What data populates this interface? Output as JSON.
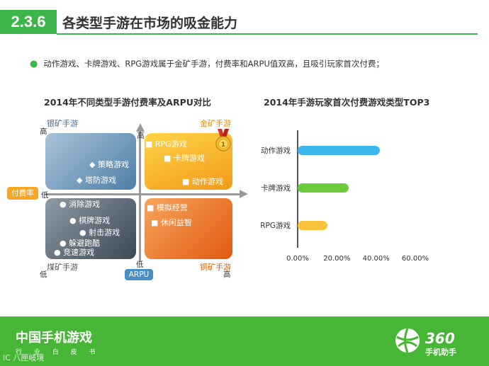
{
  "header": {
    "section_number": "2.3.6",
    "title": "各类型手游在市场的吸金能力",
    "accent_color": "#3cb54a"
  },
  "bullet": {
    "text": "动作游戏、卡牌游戏、RPG游戏属于金矿手游，付费率和ARPU值双高，且吸引玩家首次付费；"
  },
  "quadrant_chart": {
    "title": "2014年不同类型手游付费率及ARPU对比",
    "y_axis_label": "付费率",
    "x_axis_label": "ARPU",
    "y_high": "高",
    "y_low": "低",
    "x_low": "低",
    "x_high": "高",
    "quadrants": {
      "top_left": {
        "label": "银矿手游",
        "items": [
          "◆ 策略游戏",
          "◆ 塔防游戏"
        ]
      },
      "top_right": {
        "label": "金矿手游",
        "items": [
          "■ RPG游戏",
          "■ 卡牌游戏",
          "■ 动作游戏"
        ]
      },
      "bottom_left": {
        "label": "煤矿手游",
        "items": [
          "● 消除游戏",
          "● 棋牌游戏",
          "● 射击游戏",
          "● 躲避跑酷",
          "● 竞速游戏"
        ]
      },
      "bottom_right": {
        "label": "铜矿手游",
        "items": [
          "■ 模拟经营",
          "■ 休闲益智"
        ]
      }
    },
    "medal_icon": "gold-medal-icon"
  },
  "chart_data": {
    "type": "bar",
    "orientation": "horizontal",
    "title": "2014年手游玩家首次付费游戏类型TOP3",
    "categories": [
      "动作游戏",
      "卡牌游戏",
      "RPG游戏"
    ],
    "values": [
      0.42,
      0.26,
      0.15
    ],
    "colors": [
      "#3db6ee",
      "#6ccb3c",
      "#f8c33a"
    ],
    "xlim": [
      0,
      0.6
    ],
    "ticks": [
      "0.00%",
      "20.00%",
      "40.00%",
      "60.00%"
    ],
    "grid": false,
    "legend": "none"
  },
  "footer": {
    "title": "中国手机游戏",
    "subtitle": "行 业 白 皮 书",
    "logo_number": "360",
    "logo_text": "手机助手",
    "watermark": "IC 八匣岐境",
    "logo_icon": "basketball-icon"
  }
}
